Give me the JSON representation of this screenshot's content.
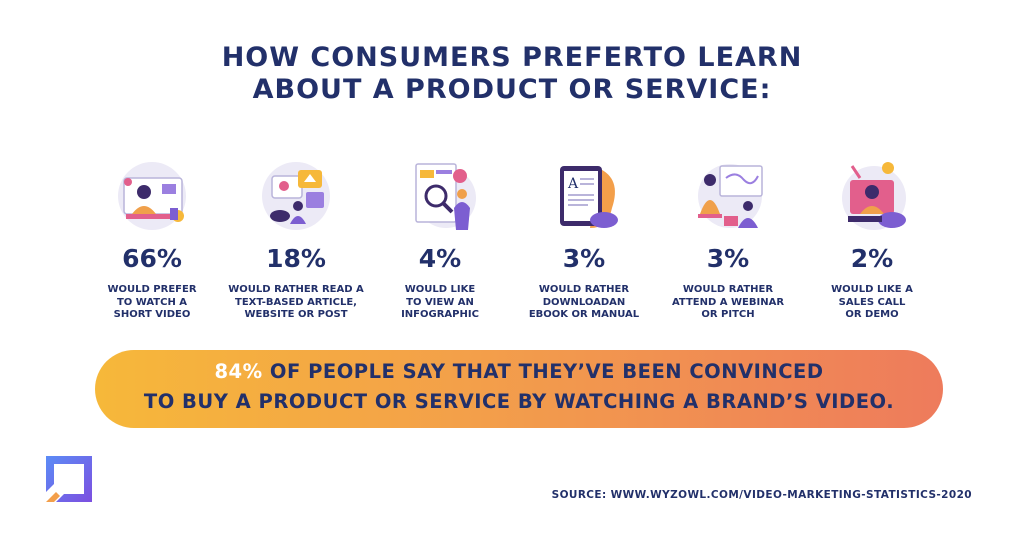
{
  "title": {
    "line1": "HOW CONSUMERS PREFERTO LEARN",
    "line2": "ABOUT A PRODUCT OR SERVICE:"
  },
  "stats": [
    {
      "percent": "66%",
      "lines": [
        "WOULD PREFER",
        "TO WATCH A",
        "SHORT VIDEO"
      ],
      "icon": "video-person-icon"
    },
    {
      "percent": "18%",
      "lines": [
        "WOULD RATHER READ A",
        "TEXT-BASED ARTICLE,",
        "WEBSITE OR POST"
      ],
      "icon": "online-reading-icon"
    },
    {
      "percent": "4%",
      "lines": [
        "WOULD LIKE",
        "TO VIEW AN",
        "INFOGRAPHIC"
      ],
      "icon": "infographic-magnifier-icon"
    },
    {
      "percent": "3%",
      "lines": [
        "WOULD RATHER",
        "DOWNLOADAN",
        "EBOOK OR MANUAL"
      ],
      "icon": "ebook-tablet-icon"
    },
    {
      "percent": "3%",
      "lines": [
        "WOULD RATHER",
        "ATTEND A WEBINAR",
        "OR PITCH"
      ],
      "icon": "webinar-presentation-icon"
    },
    {
      "percent": "2%",
      "lines": [
        "WOULD LIKE A",
        "SALES CALL",
        "OR DEMO"
      ],
      "icon": "sales-call-icon"
    }
  ],
  "banner": {
    "highlight": "84%",
    "line1_rest": " OF PEOPLE SAY THAT THEY’VE BEEN CONVINCED",
    "line2": "TO BUY A PRODUCT OR SERVICE BY WATCHING A BRAND’S VIDEO."
  },
  "source": "SOURCE: WWW.WYZOWL.COM/VIDEO-MARKETING-STATISTICS-2020",
  "colors": {
    "text": "#22306a",
    "banner_start": "#f6b83a",
    "banner_end": "#ee7b5c",
    "highlight": "#ffffff"
  },
  "logo": "brand-logo-icon"
}
